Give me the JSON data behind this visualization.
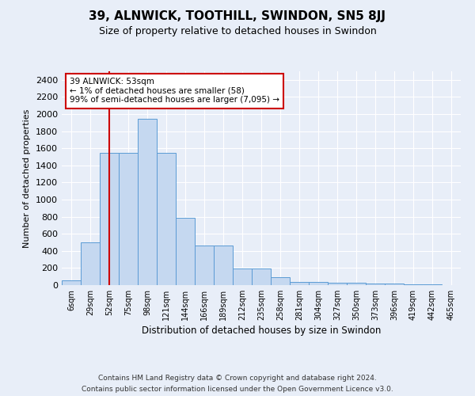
{
  "title": "39, ALNWICK, TOOTHILL, SWINDON, SN5 8JJ",
  "subtitle": "Size of property relative to detached houses in Swindon",
  "xlabel": "Distribution of detached houses by size in Swindon",
  "ylabel": "Number of detached properties",
  "categories": [
    "6sqm",
    "29sqm",
    "52sqm",
    "75sqm",
    "98sqm",
    "121sqm",
    "144sqm",
    "166sqm",
    "189sqm",
    "212sqm",
    "235sqm",
    "258sqm",
    "281sqm",
    "304sqm",
    "327sqm",
    "350sqm",
    "373sqm",
    "396sqm",
    "419sqm",
    "442sqm",
    "465sqm"
  ],
  "bar_heights": [
    55,
    500,
    1550,
    1550,
    1940,
    1550,
    790,
    460,
    460,
    195,
    195,
    95,
    35,
    35,
    25,
    25,
    20,
    20,
    5,
    5,
    0
  ],
  "bar_color": "#c5d8f0",
  "bar_edge_color": "#5b9bd5",
  "red_line_x": 2,
  "annotation_text": "39 ALNWICK: 53sqm\n← 1% of detached houses are smaller (58)\n99% of semi-detached houses are larger (7,095) →",
  "annotation_box_color": "white",
  "annotation_box_edge": "#cc0000",
  "red_line_color": "#cc0000",
  "ylim": [
    0,
    2500
  ],
  "yticks": [
    0,
    200,
    400,
    600,
    800,
    1000,
    1200,
    1400,
    1600,
    1800,
    2000,
    2200,
    2400
  ],
  "footer_line1": "Contains HM Land Registry data © Crown copyright and database right 2024.",
  "footer_line2": "Contains public sector information licensed under the Open Government Licence v3.0.",
  "bg_color": "#e8eef8",
  "plot_bg_color": "#e8eef8",
  "grid_color": "#ffffff"
}
